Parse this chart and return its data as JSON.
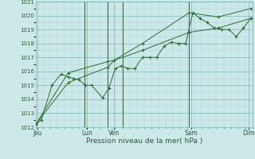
{
  "xlabel": "Pression niveau de la mer( hPa )",
  "bg_color": "#cce8e8",
  "grid_color": "#7ab8b8",
  "grid_color_minor": "#aad4d4",
  "line_color": "#2d6e2d",
  "vline_color": "#4a6b4a",
  "ylim": [
    1012,
    1021
  ],
  "yticks": [
    1012,
    1013,
    1014,
    1015,
    1016,
    1017,
    1018,
    1019,
    1020,
    1021
  ],
  "xlim": [
    0,
    12
  ],
  "day_vline_x": [
    2.7,
    4.0,
    4.8,
    8.5
  ],
  "day_tick_x": [
    0.1,
    2.85,
    4.35,
    8.6,
    11.8
  ],
  "day_labels": [
    "Jeu",
    "Lun",
    "Ven",
    "Sam",
    "Dim"
  ],
  "series1_x": [
    0.0,
    0.3,
    0.9,
    1.4,
    1.8,
    2.1,
    2.4,
    2.75,
    3.1,
    3.7,
    4.05,
    4.4,
    4.75,
    5.1,
    5.5,
    5.9,
    6.3,
    6.7,
    7.1,
    7.5,
    7.9,
    8.3,
    8.7,
    9.1,
    9.5,
    9.9,
    10.3,
    10.7,
    11.1,
    11.5,
    11.9
  ],
  "series1_y": [
    1012.2,
    1012.5,
    1015.0,
    1015.8,
    1015.6,
    1015.5,
    1015.4,
    1015.0,
    1015.0,
    1014.1,
    1014.8,
    1016.2,
    1016.4,
    1016.2,
    1016.2,
    1017.0,
    1017.0,
    1017.0,
    1017.8,
    1018.1,
    1018.0,
    1018.0,
    1020.2,
    1019.8,
    1019.5,
    1019.1,
    1019.0,
    1019.0,
    1018.5,
    1019.1,
    1019.8
  ],
  "series2_x": [
    0.0,
    1.8,
    4.0,
    4.35,
    5.9,
    8.5,
    10.1,
    11.9
  ],
  "series2_y": [
    1012.2,
    1015.9,
    1016.7,
    1016.8,
    1018.0,
    1020.2,
    1019.9,
    1020.5
  ],
  "series3_x": [
    0.0,
    1.8,
    4.0,
    4.35,
    5.9,
    8.5,
    10.1,
    11.9
  ],
  "series3_y": [
    1012.2,
    1015.2,
    1016.3,
    1016.8,
    1017.5,
    1018.8,
    1019.1,
    1019.8
  ],
  "xlabel_fontsize": 6.5,
  "ytick_fontsize": 5.0,
  "xtick_fontsize": 5.5
}
